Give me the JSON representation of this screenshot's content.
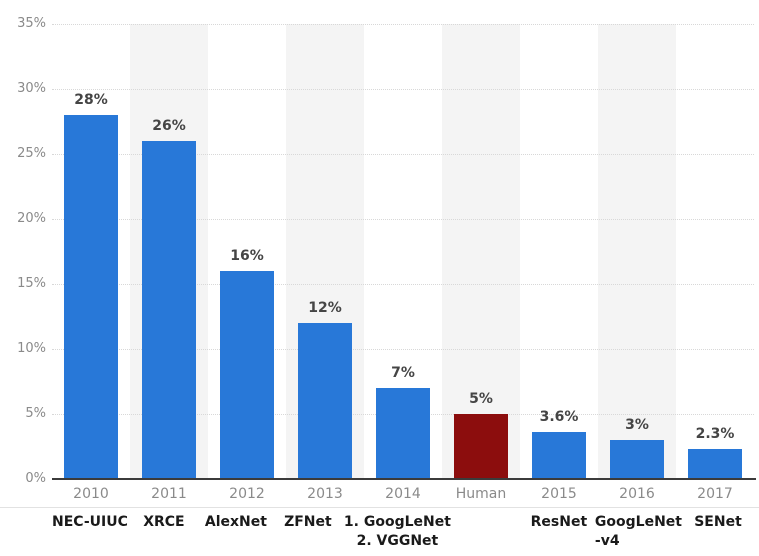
{
  "chart_data": {
    "type": "bar",
    "title": "",
    "categories": [
      "2010",
      "2011",
      "2012",
      "2013",
      "2014",
      "Human",
      "2015",
      "2016",
      "2017"
    ],
    "model_labels": [
      {
        "lines": [
          "NEC-UIUC"
        ],
        "align": "center"
      },
      {
        "lines": [
          "XRCE"
        ],
        "align": "center"
      },
      {
        "lines": [
          "AlexNet"
        ],
        "align": "center"
      },
      {
        "lines": [
          "ZFNet"
        ],
        "align": "center"
      },
      {
        "lines": [
          "1. GoogLeNet",
          "2. VGGNet"
        ],
        "align": "center"
      },
      {
        "lines": [],
        "align": "center"
      },
      {
        "lines": [
          "ResNet"
        ],
        "align": "center"
      },
      {
        "lines": [
          "GoogLeNet",
          "-v4"
        ],
        "align": "left"
      },
      {
        "lines": [
          "SENet"
        ],
        "align": "center"
      }
    ],
    "values": [
      28,
      26,
      16,
      12,
      7,
      5,
      3.6,
      3,
      2.3
    ],
    "data_labels": [
      "28%",
      "26%",
      "16%",
      "12%",
      "7%",
      "5%",
      "3.6%",
      "3%",
      "2.3%"
    ],
    "bar_colors": [
      "#2878d8",
      "#2878d8",
      "#2878d8",
      "#2878d8",
      "#2878d8",
      "#8c0d0d",
      "#2878d8",
      "#2878d8",
      "#2878d8"
    ],
    "ylim": [
      0,
      35
    ],
    "ytick_step": 5,
    "ytick_labels": [
      "35%",
      "30%",
      "25%",
      "20%",
      "15%",
      "10%",
      "5%",
      "0%"
    ],
    "xlabel": "",
    "ylabel": "",
    "grid": "horizontal-dotted",
    "legend": "none",
    "striped_columns": [
      1,
      3,
      5,
      7
    ],
    "highlight_category": "Human"
  },
  "colors": {
    "background": "#ffffff",
    "bar_blue": "#2878d8",
    "bar_red": "#8c0d0d",
    "stripe_bg": "#f4f4f4",
    "gridline": "#d8d8d8",
    "axis_line": "#3b3b3b",
    "separator_line": "#e2e2e2",
    "tick_text": "#8a8a8a",
    "year_text": "#8a8a8a",
    "model_text": "#1a1a1a",
    "value_text": "#454545"
  }
}
